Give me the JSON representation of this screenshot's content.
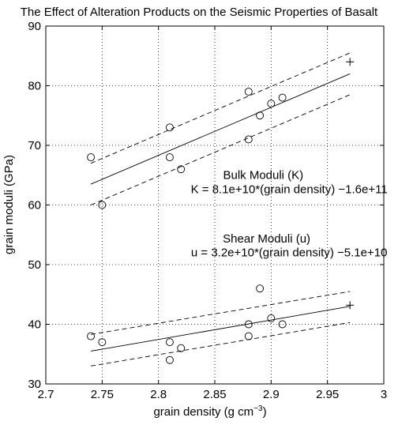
{
  "chart_data": {
    "type": "scatter",
    "title": "The Effect of Alteration Products on the Seismic Properties of Basalt",
    "xlabel": "grain density (g cm",
    "xlabel_exponent": "−3",
    "xlabel_close": ")",
    "ylabel": "grain moduli (GPa)",
    "xlim": [
      2.7,
      3.0
    ],
    "ylim": [
      30,
      90
    ],
    "x_ticks": [
      2.7,
      2.75,
      2.8,
      2.85,
      2.9,
      2.95,
      3.0
    ],
    "x_tick_labels": [
      "2.7",
      "2.75",
      "2.8",
      "2.85",
      "2.9",
      "2.95",
      "3"
    ],
    "y_ticks": [
      30,
      40,
      50,
      60,
      70,
      80,
      90
    ],
    "y_tick_labels": [
      "30",
      "40",
      "50",
      "60",
      "70",
      "80",
      "90"
    ],
    "grid": true,
    "series": [
      {
        "group": "bulk",
        "points": [
          {
            "x": 2.74,
            "y": 68
          },
          {
            "x": 2.75,
            "y": 60
          },
          {
            "x": 2.81,
            "y": 73
          },
          {
            "x": 2.81,
            "y": 68
          },
          {
            "x": 2.82,
            "y": 66
          },
          {
            "x": 2.88,
            "y": 79
          },
          {
            "x": 2.88,
            "y": 71
          },
          {
            "x": 2.89,
            "y": 75
          },
          {
            "x": 2.9,
            "y": 77
          },
          {
            "x": 2.91,
            "y": 78
          }
        ],
        "fit_line": [
          [
            2.74,
            63.5
          ],
          [
            2.97,
            82
          ]
        ],
        "upper_bound": [
          [
            2.74,
            67
          ],
          [
            2.97,
            85.5
          ]
        ],
        "lower_bound": [
          [
            2.74,
            60
          ],
          [
            2.97,
            78.5
          ]
        ],
        "predicted": {
          "x": 2.97,
          "y": 84
        }
      },
      {
        "group": "shear",
        "points": [
          {
            "x": 2.74,
            "y": 38
          },
          {
            "x": 2.75,
            "y": 37
          },
          {
            "x": 2.81,
            "y": 37
          },
          {
            "x": 2.81,
            "y": 34
          },
          {
            "x": 2.82,
            "y": 36
          },
          {
            "x": 2.88,
            "y": 40
          },
          {
            "x": 2.88,
            "y": 38
          },
          {
            "x": 2.89,
            "y": 46
          },
          {
            "x": 2.9,
            "y": 41
          },
          {
            "x": 2.91,
            "y": 40
          }
        ],
        "fit_line": [
          [
            2.74,
            35.5
          ],
          [
            2.97,
            43
          ]
        ],
        "upper_bound": [
          [
            2.74,
            38.3
          ],
          [
            2.97,
            45.5
          ]
        ],
        "lower_bound": [
          [
            2.74,
            33
          ],
          [
            2.97,
            40.3
          ]
        ],
        "predicted": {
          "x": 2.97,
          "y": 43.2
        }
      }
    ],
    "annotations": [
      {
        "name": "bulk-title",
        "text": "Bulk Moduli (K)",
        "x": 2.893,
        "y": 64.4,
        "anchor": "middle"
      },
      {
        "name": "bulk-equation",
        "text": "K = 8.1e+10*(grain density) −1.6e+11",
        "x": 2.916,
        "y": 62.0,
        "anchor": "middle"
      },
      {
        "name": "shear-title",
        "text": "Shear Moduli (u)",
        "x": 2.896,
        "y": 53.7,
        "anchor": "middle"
      },
      {
        "name": "shear-equation",
        "text": "u = 3.2e+10*(grain density) −5.1e+10",
        "x": 2.916,
        "y": 51.4,
        "anchor": "middle"
      }
    ]
  }
}
